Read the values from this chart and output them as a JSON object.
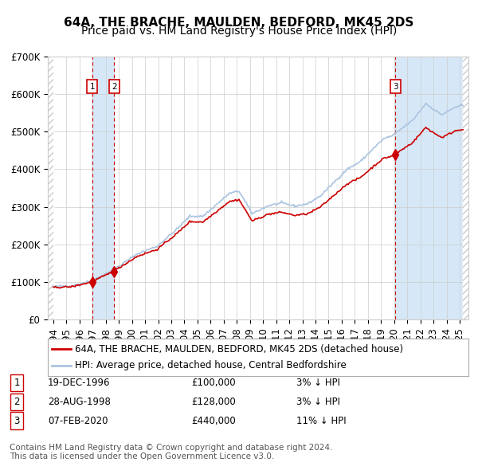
{
  "title": "64A, THE BRACHE, MAULDEN, BEDFORD, MK45 2DS",
  "subtitle": "Price paid vs. HM Land Registry's House Price Index (HPI)",
  "xlabel": "",
  "ylabel": "",
  "ylim": [
    0,
    700000
  ],
  "yticks": [
    0,
    100000,
    200000,
    300000,
    400000,
    500000,
    600000,
    700000
  ],
  "ytick_labels": [
    "£0",
    "£100K",
    "£200K",
    "£300K",
    "£400K",
    "£500K",
    "£600K",
    "£700K"
  ],
  "x_start_year": 1994,
  "x_end_year": 2025,
  "sale_dates": [
    "1996-12-19",
    "1998-08-28",
    "2020-02-07"
  ],
  "sale_prices": [
    100000,
    128000,
    440000
  ],
  "sale_labels": [
    "1",
    "2",
    "3"
  ],
  "hpi_color": "#aac4e0",
  "price_color": "#cc0000",
  "marker_color": "#cc0000",
  "vline_color": "#cc0000",
  "shade_color": "#d6e8f7",
  "grid_color": "#cccccc",
  "background_color": "#ffffff",
  "hatch_color": "#cccccc",
  "legend_label_price": "64A, THE BRACHE, MAULDEN, BEDFORD, MK45 2DS (detached house)",
  "legend_label_hpi": "HPI: Average price, detached house, Central Bedfordshire",
  "table_data": [
    [
      "1",
      "19-DEC-1996",
      "£100,000",
      "3% ↓ HPI"
    ],
    [
      "2",
      "28-AUG-1998",
      "£128,000",
      "3% ↓ HPI"
    ],
    [
      "3",
      "07-FEB-2020",
      "£440,000",
      "11% ↓ HPI"
    ]
  ],
  "footer": "Contains HM Land Registry data © Crown copyright and database right 2024.\nThis data is licensed under the Open Government Licence v3.0.",
  "title_fontsize": 11,
  "subtitle_fontsize": 10,
  "tick_fontsize": 8.5,
  "legend_fontsize": 8.5,
  "table_fontsize": 8.5,
  "footer_fontsize": 7.5
}
